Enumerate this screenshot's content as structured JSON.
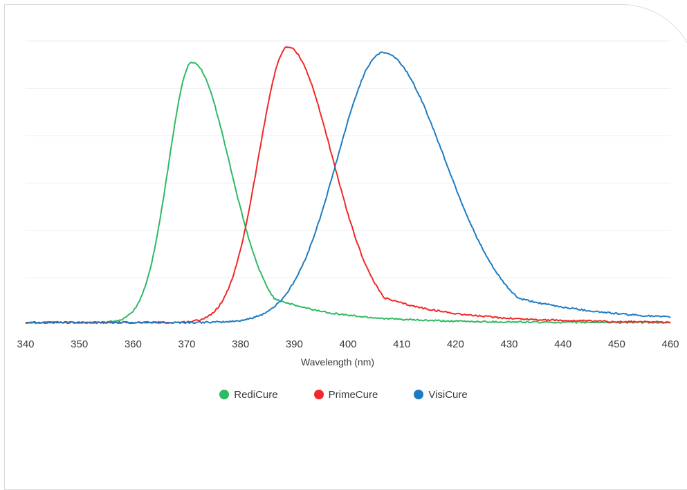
{
  "chart_data": {
    "type": "line",
    "title": "",
    "xlabel": "Wavelength (nm)",
    "ylabel": "",
    "xlim": [
      340,
      460
    ],
    "ylim": [
      0,
      1
    ],
    "grid": true,
    "gridlines_y": 7,
    "legend_position": "bottom",
    "xticks": [
      340,
      350,
      360,
      370,
      380,
      390,
      400,
      410,
      420,
      430,
      440,
      450,
      460
    ],
    "series": [
      {
        "name": "RediCure",
        "color": "#2dba63",
        "peak": 371,
        "amplitude": 0.945,
        "sigma_left": 4.4,
        "sigma_right": 7.0,
        "tail": 4.5
      },
      {
        "name": "PrimeCure",
        "color": "#f22727",
        "peak": 388.8,
        "amplitude": 1.0,
        "sigma_left": 5.4,
        "sigma_right": 8.2,
        "tail": 5.0
      },
      {
        "name": "VisiCure",
        "color": "#1f7bc1",
        "peak": 406.5,
        "amplitude": 0.98,
        "sigma_left": 8.5,
        "sigma_right": 11.5,
        "tail": 7.0
      }
    ],
    "baseline": 0.01
  }
}
